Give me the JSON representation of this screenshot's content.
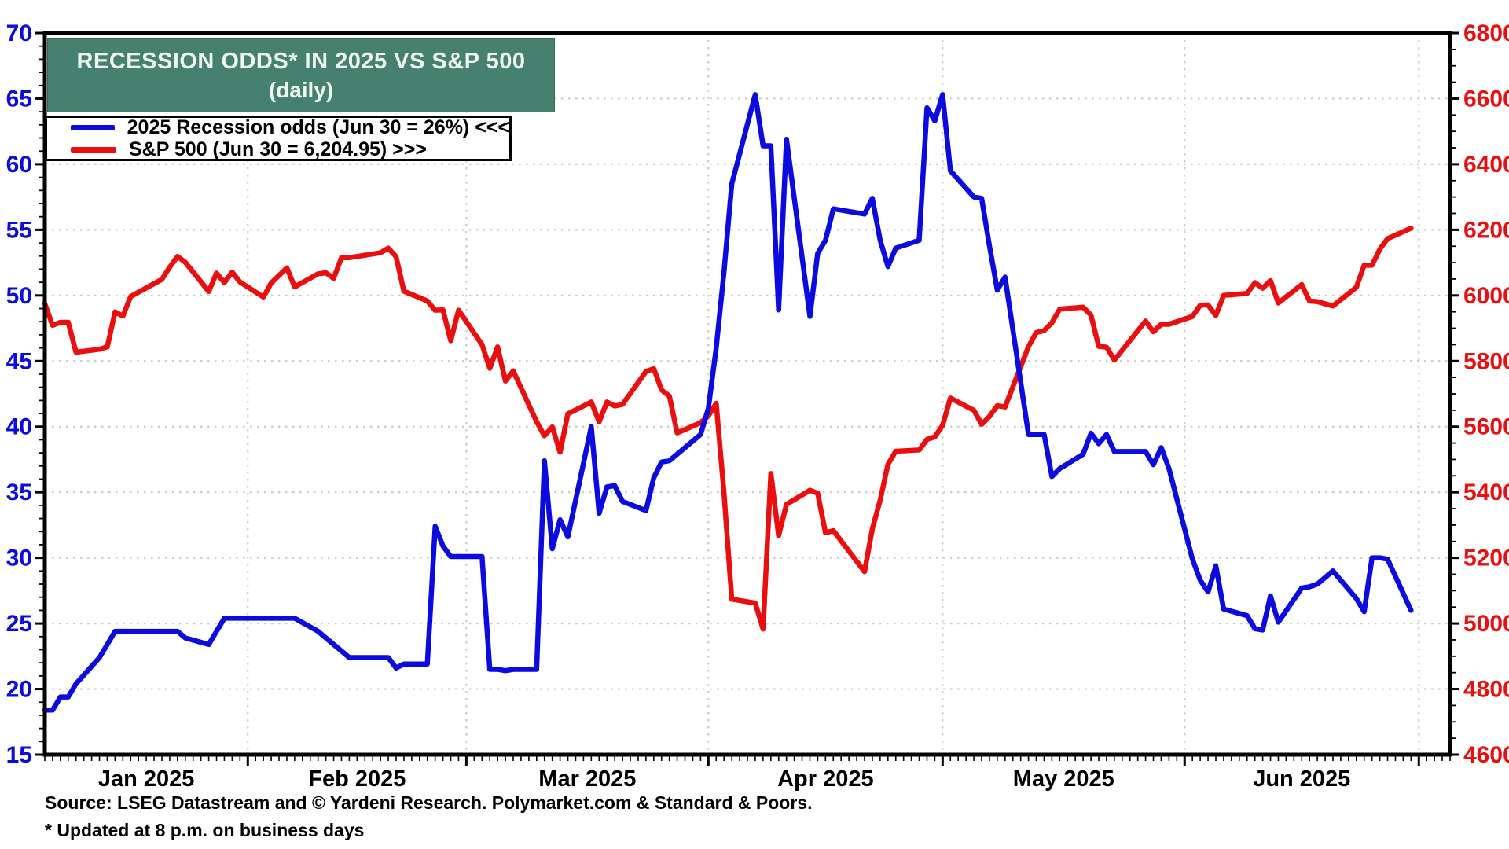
{
  "title": {
    "line1": "RECESSION ODDS* IN 2025 VS S&P 500",
    "line2": "(daily)"
  },
  "legend": [
    {
      "label": "2025 Recession odds (Jun 30 = 26%) <<<",
      "color": "#0b0be0"
    },
    {
      "label": "S&P 500 (Jun 30 = 6,204.95) >>>",
      "color": "#ea0e0e"
    }
  ],
  "source_note": "Source: LSEG Datastream and © Yardeni Research. Polymarket.com & Standard & Poors.",
  "footnote": "* Updated at 8 p.m. on business days",
  "colors": {
    "title_box": "#46806F",
    "title_text": "#eef7f3",
    "recession_line": "#0b0be0",
    "sp500_line": "#ea0e0e",
    "left_axis_labels": "#0b0be0",
    "right_axis_labels": "#ea0e0e",
    "month_labels": "#000000",
    "gridlines": "#c9c9c9",
    "plot_border": "#000000"
  },
  "chart_data": {
    "type": "line",
    "title": "RECESSION ODDS* IN 2025 VS S&P 500 (daily)",
    "grid": true,
    "legend_position": "top-left",
    "x_axis": {
      "months": [
        "Jan 2025",
        "Feb 2025",
        "Mar 2025",
        "Apr 2025",
        "May 2025",
        "Jun 2025"
      ],
      "month_start_day_of_year": [
        32,
        60,
        91,
        121,
        152,
        182
      ],
      "axis_start_day_of_year": 6,
      "axis_end_day_of_year": 186,
      "tick_unit": "business day"
    },
    "left_axis": {
      "min": 15,
      "max": 70,
      "tick_step": 5,
      "minor_step": 1,
      "color": "#0b0be0",
      "series": "2025 Recession odds (%)"
    },
    "right_axis": {
      "min": 4600,
      "max": 6800,
      "tick_step": 200,
      "minor_step": 50,
      "color": "#ea0e0e",
      "series": "S&P 500"
    },
    "dates": [
      "01-06",
      "01-07",
      "01-08",
      "01-09",
      "01-10",
      "01-13",
      "01-14",
      "01-15",
      "01-16",
      "01-17",
      "01-21",
      "01-22",
      "01-23",
      "01-24",
      "01-27",
      "01-28",
      "01-29",
      "01-30",
      "01-31",
      "02-03",
      "02-04",
      "02-05",
      "02-06",
      "02-07",
      "02-10",
      "02-11",
      "02-12",
      "02-13",
      "02-14",
      "02-18",
      "02-19",
      "02-20",
      "02-21",
      "02-24",
      "02-25",
      "02-26",
      "02-27",
      "02-28",
      "03-03",
      "03-04",
      "03-05",
      "03-06",
      "03-07",
      "03-10",
      "03-11",
      "03-12",
      "03-13",
      "03-14",
      "03-17",
      "03-18",
      "03-19",
      "03-20",
      "03-21",
      "03-24",
      "03-25",
      "03-26",
      "03-27",
      "03-28",
      "03-31",
      "04-01",
      "04-02",
      "04-03",
      "04-04",
      "04-07",
      "04-08",
      "04-09",
      "04-10",
      "04-11",
      "04-14",
      "04-15",
      "04-16",
      "04-17",
      "04-21",
      "04-22",
      "04-23",
      "04-24",
      "04-25",
      "04-28",
      "04-29",
      "04-30",
      "05-01",
      "05-02",
      "05-05",
      "05-06",
      "05-07",
      "05-08",
      "05-09",
      "05-12",
      "05-13",
      "05-14",
      "05-15",
      "05-16",
      "05-19",
      "05-20",
      "05-21",
      "05-22",
      "05-23",
      "05-27",
      "05-28",
      "05-29",
      "05-30",
      "06-02",
      "06-03",
      "06-04",
      "06-05",
      "06-06",
      "06-09",
      "06-10",
      "06-11",
      "06-12",
      "06-13",
      "06-16",
      "06-17",
      "06-18",
      "06-20",
      "06-23",
      "06-24",
      "06-25",
      "06-26",
      "06-27",
      "06-30"
    ],
    "series": [
      {
        "name": "2025 Recession odds",
        "axis": "left",
        "color": "#0b0be0",
        "values": [
          18.4,
          18.4,
          19.4,
          19.4,
          20.4,
          22.4,
          23.4,
          24.4,
          24.4,
          24.4,
          24.4,
          24.4,
          24.4,
          23.9,
          23.4,
          24.4,
          25.4,
          25.4,
          25.4,
          25.4,
          25.4,
          25.4,
          25.4,
          25.4,
          24.4,
          23.9,
          23.4,
          22.9,
          22.4,
          22.4,
          22.4,
          21.6,
          21.9,
          21.9,
          32.4,
          30.9,
          30.1,
          30.1,
          30.1,
          21.5,
          21.5,
          21.4,
          21.5,
          21.5,
          37.4,
          30.7,
          32.9,
          31.6,
          40.0,
          33.4,
          35.4,
          35.5,
          34.3,
          33.6,
          36.1,
          37.3,
          37.4,
          37.9,
          39.4,
          41.4,
          46.0,
          51.8,
          58.5,
          65.3,
          61.4,
          61.4,
          48.9,
          61.9,
          48.4,
          53.2,
          54.2,
          56.6,
          56.2,
          57.4,
          54.2,
          52.2,
          53.6,
          54.2,
          64.3,
          63.3,
          65.3,
          59.5,
          57.5,
          57.4,
          53.8,
          50.4,
          51.4,
          39.4,
          39.4,
          39.4,
          36.2,
          36.8,
          37.9,
          39.5,
          38.7,
          39.4,
          38.1,
          38.1,
          37.1,
          38.4,
          36.8,
          29.9,
          28.3,
          27.4,
          29.4,
          26.1,
          25.6,
          24.6,
          24.5,
          27.1,
          25.1,
          27.7,
          27.8,
          28.0,
          29.0,
          26.9,
          25.9,
          30.0,
          30.0,
          29.9,
          26.0
        ]
      },
      {
        "name": "S&P 500",
        "axis": "right",
        "color": "#ea0e0e",
        "values": [
          5975,
          5909,
          5918,
          5918,
          5827,
          5836,
          5843,
          5950,
          5937,
          5997,
          6049,
          6086,
          6119,
          6101,
          6012,
          6068,
          6039,
          6071,
          6041,
          5995,
          6038,
          6061,
          6084,
          6026,
          6066,
          6069,
          6052,
          6115,
          6115,
          6130,
          6144,
          6118,
          6013,
          5983,
          5955,
          5956,
          5862,
          5955,
          5850,
          5778,
          5843,
          5739,
          5770,
          5615,
          5572,
          5599,
          5522,
          5639,
          5675,
          5615,
          5675,
          5663,
          5668,
          5768,
          5777,
          5712,
          5693,
          5581,
          5612,
          5633,
          5671,
          5397,
          5074,
          5062,
          4983,
          5457,
          5268,
          5363,
          5406,
          5397,
          5276,
          5283,
          5158,
          5288,
          5376,
          5485,
          5525,
          5529,
          5561,
          5569,
          5604,
          5687,
          5650,
          5607,
          5631,
          5664,
          5660,
          5844,
          5887,
          5893,
          5917,
          5958,
          5964,
          5940,
          5845,
          5842,
          5803,
          5922,
          5889,
          5912,
          5912,
          5936,
          5970,
          5971,
          5939,
          6000,
          6006,
          6039,
          6022,
          6045,
          5977,
          6033,
          5983,
          5981,
          5968,
          6025,
          6092,
          6092,
          6141,
          6173,
          6204.95
        ]
      }
    ]
  }
}
